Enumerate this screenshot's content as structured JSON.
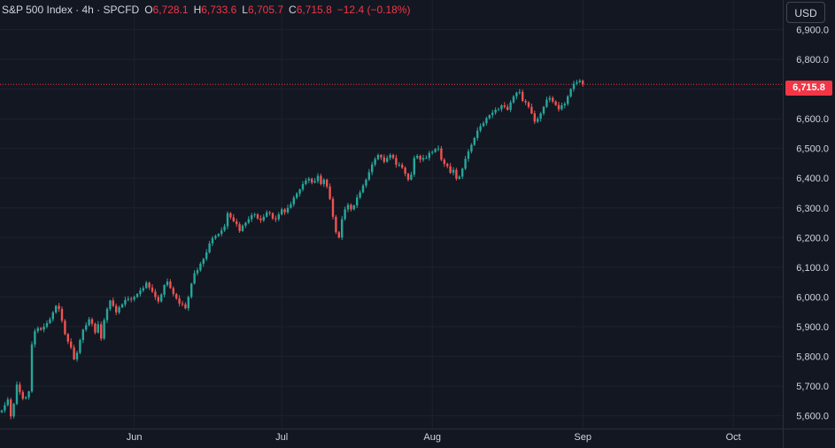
{
  "header": {
    "symbol": "S&P 500 Index · 4h · SPCFD",
    "open_label": "O",
    "open": "6,728.1",
    "high_label": "H",
    "high": "6,733.6",
    "low_label": "L",
    "low": "6,705.7",
    "close_label": "C",
    "close": "6,715.8",
    "change": "−12.4 (−0.18%)"
  },
  "currency_button": "USD",
  "last_price_label": "6,715.8",
  "colors": {
    "background": "#131722",
    "up": "#26a69a",
    "down": "#ef5350",
    "grid": "#1e222d",
    "text": "#d1d4dc",
    "price_line": "#f23645"
  },
  "chart_data": {
    "type": "candlestick",
    "timeframe": "4h",
    "last_price": 6715.8,
    "ylim": [
      5590,
      6940
    ],
    "y_ticks": [
      "6,900.0",
      "6,800.0",
      "6,700.0",
      "6,600.0",
      "6,500.0",
      "6,400.0",
      "6,300.0",
      "6,200.0",
      "6,100.0",
      "6,000.0",
      "5,900.0",
      "5,800.0",
      "5,700.0",
      "5,600.0"
    ],
    "y_tick_values": [
      6900,
      6800,
      6700,
      6600,
      6500,
      6400,
      6300,
      6200,
      6100,
      6000,
      5900,
      5800,
      5700,
      5600
    ],
    "x_ticks": [
      {
        "label": "Jun",
        "index": 44
      },
      {
        "label": "Jul",
        "index": 93
      },
      {
        "label": "Aug",
        "index": 143
      },
      {
        "label": "Sep",
        "index": 193
      },
      {
        "label": "Oct",
        "index": 243
      }
    ],
    "grid": true,
    "closes": [
      5618,
      5636,
      5655,
      5598,
      5640,
      5705,
      5680,
      5658,
      5662,
      5682,
      5840,
      5885,
      5895,
      5890,
      5900,
      5912,
      5925,
      5948,
      5970,
      5960,
      5920,
      5875,
      5850,
      5830,
      5790,
      5812,
      5855,
      5890,
      5905,
      5925,
      5910,
      5880,
      5908,
      5860,
      5922,
      5960,
      5988,
      5970,
      5948,
      5965,
      5975,
      5990,
      5994,
      5992,
      6000,
      6010,
      6022,
      6030,
      6048,
      6032,
      6018,
      6000,
      5985,
      6008,
      6040,
      6052,
      6030,
      6010,
      5995,
      5978,
      5975,
      5962,
      6000,
      6045,
      6080,
      6090,
      6112,
      6128,
      6150,
      6180,
      6198,
      6205,
      6212,
      6224,
      6238,
      6282,
      6268,
      6255,
      6245,
      6222,
      6240,
      6250,
      6262,
      6275,
      6278,
      6264,
      6258,
      6270,
      6285,
      6282,
      6264,
      6262,
      6278,
      6295,
      6285,
      6300,
      6312,
      6334,
      6348,
      6362,
      6380,
      6392,
      6398,
      6385,
      6390,
      6408,
      6380,
      6395,
      6372,
      6330,
      6270,
      6218,
      6200,
      6262,
      6295,
      6310,
      6295,
      6308,
      6335,
      6352,
      6375,
      6395,
      6420,
      6446,
      6464,
      6478,
      6470,
      6455,
      6468,
      6478,
      6468,
      6445,
      6445,
      6435,
      6415,
      6395,
      6412,
      6468,
      6475,
      6462,
      6468,
      6468,
      6485,
      6488,
      6498,
      6500,
      6462,
      6448,
      6440,
      6418,
      6428,
      6398,
      6405,
      6432,
      6465,
      6490,
      6512,
      6535,
      6560,
      6575,
      6585,
      6602,
      6612,
      6620,
      6630,
      6632,
      6645,
      6640,
      6630,
      6655,
      6675,
      6688,
      6690,
      6660,
      6655,
      6640,
      6618,
      6590,
      6600,
      6618,
      6640,
      6664,
      6670,
      6658,
      6646,
      6632,
      6645,
      6650,
      6675,
      6700,
      6718,
      6723,
      6728,
      6715.8
    ]
  }
}
